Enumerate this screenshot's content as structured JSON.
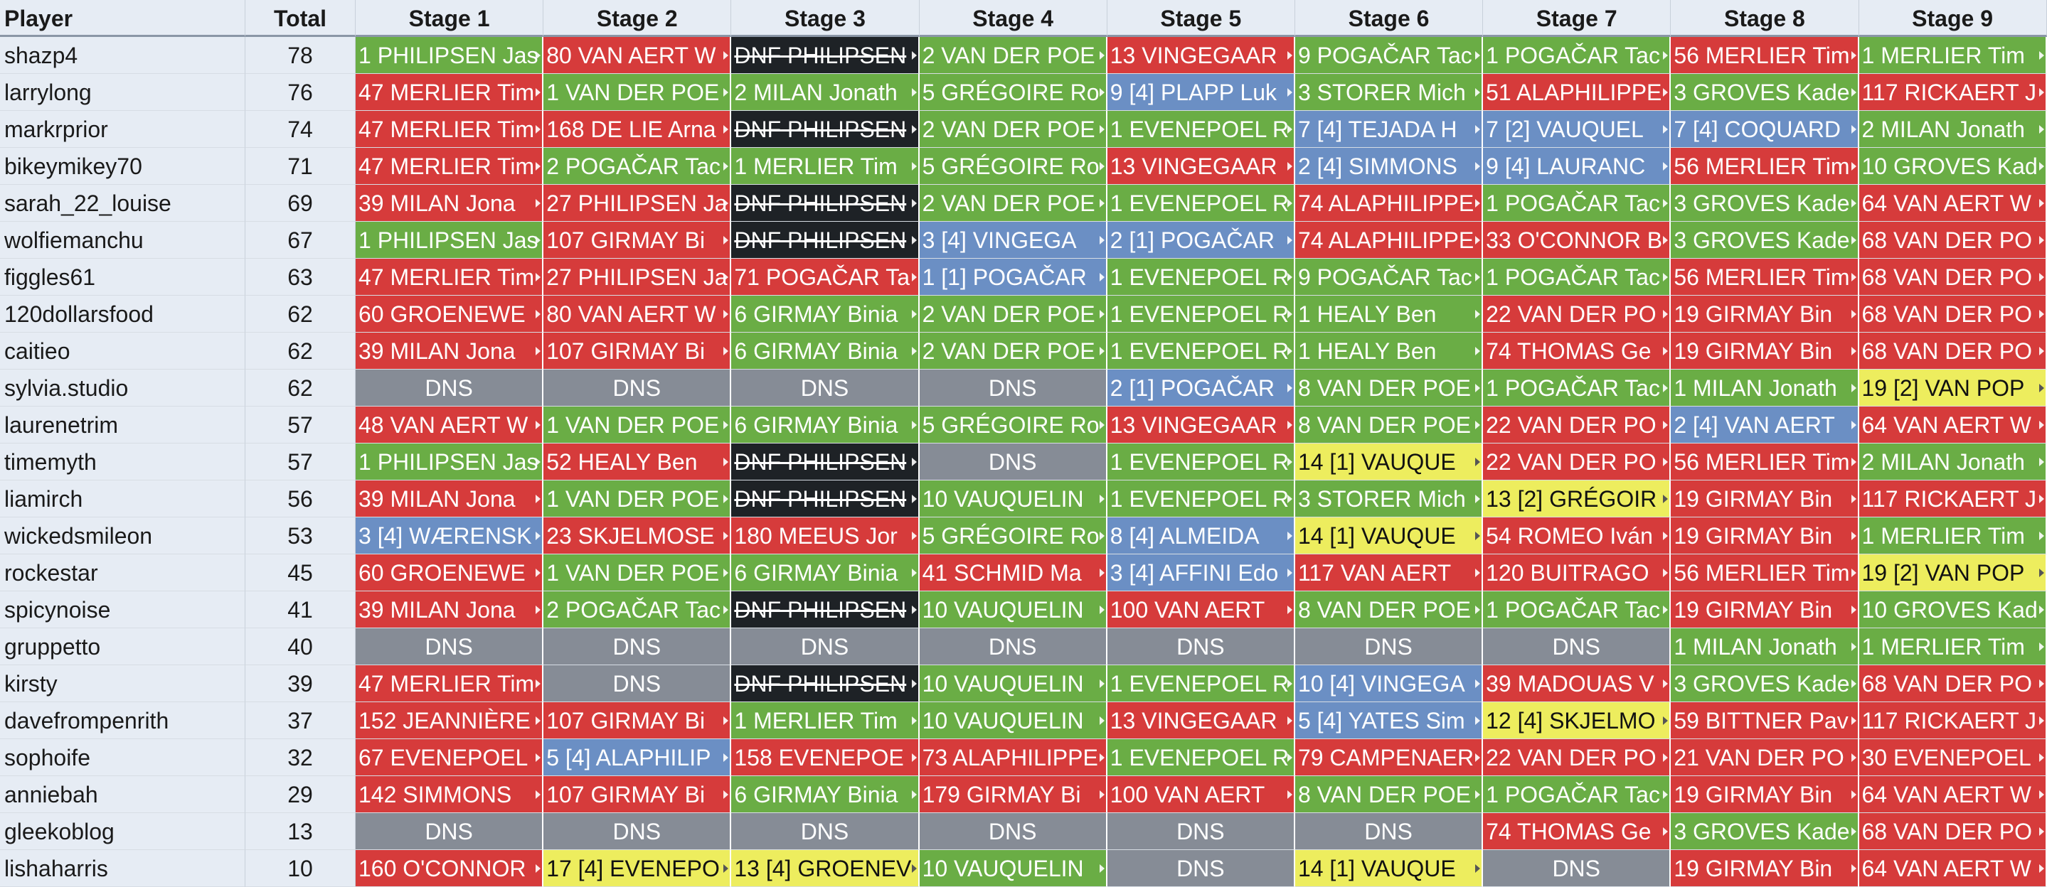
{
  "headers": [
    "Player",
    "Total",
    "Stage 1",
    "Stage 2",
    "Stage 3",
    "Stage 4",
    "Stage 5",
    "Stage 6",
    "Stage 7",
    "Stage 8",
    "Stage 9"
  ],
  "status_colors": {
    "green": "#6aad45",
    "red": "#d63b3b",
    "blue": "#6b8fc4",
    "yellow": "#eded5e",
    "black": "#1e2226",
    "dns": "#868c96"
  },
  "rows": [
    {
      "player": "shazp4",
      "total": "78",
      "stages": [
        {
          "t": "1 PHILIPSEN Jas",
          "s": "green"
        },
        {
          "t": "80 VAN AERT W",
          "s": "red"
        },
        {
          "t": "DNF PHILIPSEN",
          "s": "black"
        },
        {
          "t": "2 VAN DER POE",
          "s": "green"
        },
        {
          "t": "13 VINGEGAAR",
          "s": "red"
        },
        {
          "t": "9 POGAČAR Tac",
          "s": "green"
        },
        {
          "t": "1 POGAČAR Tac",
          "s": "green"
        },
        {
          "t": "56 MERLIER Tim",
          "s": "red"
        },
        {
          "t": "1 MERLIER Tim",
          "s": "green"
        }
      ]
    },
    {
      "player": "larrylong",
      "total": "76",
      "stages": [
        {
          "t": "47 MERLIER Tim",
          "s": "red"
        },
        {
          "t": "1 VAN DER POE",
          "s": "green"
        },
        {
          "t": "2 MILAN Jonath",
          "s": "green"
        },
        {
          "t": "5 GRÉGOIRE Ro",
          "s": "green"
        },
        {
          "t": "9 [4] PLAPP Luk",
          "s": "blue"
        },
        {
          "t": "3 STORER Mich",
          "s": "green"
        },
        {
          "t": "51 ALAPHILIPPE",
          "s": "red"
        },
        {
          "t": "3 GROVES Kade",
          "s": "green"
        },
        {
          "t": "117 RICKAERT J",
          "s": "red"
        }
      ]
    },
    {
      "player": "markrprior",
      "total": "74",
      "stages": [
        {
          "t": "47 MERLIER Tim",
          "s": "red"
        },
        {
          "t": "168 DE LIE Arna",
          "s": "red"
        },
        {
          "t": "DNF PHILIPSEN",
          "s": "black"
        },
        {
          "t": "2 VAN DER POE",
          "s": "green"
        },
        {
          "t": "1 EVENEPOEL R",
          "s": "green"
        },
        {
          "t": "7 [4] TEJADA H",
          "s": "blue"
        },
        {
          "t": "7 [2] VAUQUEL",
          "s": "blue"
        },
        {
          "t": "7 [4] COQUARD",
          "s": "blue"
        },
        {
          "t": "2 MILAN Jonath",
          "s": "green"
        }
      ]
    },
    {
      "player": "bikeymikey70",
      "total": "71",
      "stages": [
        {
          "t": "47 MERLIER Tim",
          "s": "red"
        },
        {
          "t": "2 POGAČAR Tac",
          "s": "green"
        },
        {
          "t": "1 MERLIER Tim",
          "s": "green"
        },
        {
          "t": "5 GRÉGOIRE Ro",
          "s": "green"
        },
        {
          "t": "13 VINGEGAAR",
          "s": "red"
        },
        {
          "t": "2 [4] SIMMONS",
          "s": "blue"
        },
        {
          "t": "9 [4] LAURANC",
          "s": "blue"
        },
        {
          "t": "56 MERLIER Tim",
          "s": "red"
        },
        {
          "t": "10 GROVES Kad",
          "s": "green"
        }
      ]
    },
    {
      "player": "sarah_22_louise",
      "total": "69",
      "stages": [
        {
          "t": "39 MILAN Jona",
          "s": "red"
        },
        {
          "t": "27 PHILIPSEN Ja",
          "s": "red"
        },
        {
          "t": "DNF PHILIPSEN",
          "s": "black"
        },
        {
          "t": "2 VAN DER POE",
          "s": "green"
        },
        {
          "t": "1 EVENEPOEL R",
          "s": "green"
        },
        {
          "t": "74 ALAPHILIPPE",
          "s": "red"
        },
        {
          "t": "1 POGAČAR Tac",
          "s": "green"
        },
        {
          "t": "3 GROVES Kade",
          "s": "green"
        },
        {
          "t": "64 VAN AERT W",
          "s": "red"
        }
      ]
    },
    {
      "player": "wolfiemanchu",
      "total": "67",
      "stages": [
        {
          "t": "1 PHILIPSEN Jas",
          "s": "green"
        },
        {
          "t": "107 GIRMAY Bi",
          "s": "red"
        },
        {
          "t": "DNF PHILIPSEN",
          "s": "black"
        },
        {
          "t": "3 [4] VINGEGA",
          "s": "blue"
        },
        {
          "t": "2 [1] POGAČAR",
          "s": "blue"
        },
        {
          "t": "74 ALAPHILIPPE",
          "s": "red"
        },
        {
          "t": "33 O'CONNOR B",
          "s": "red"
        },
        {
          "t": "3 GROVES Kade",
          "s": "green"
        },
        {
          "t": "68 VAN DER PO",
          "s": "red"
        }
      ]
    },
    {
      "player": "figgles61",
      "total": "63",
      "stages": [
        {
          "t": "47 MERLIER Tim",
          "s": "red"
        },
        {
          "t": "27 PHILIPSEN Ja",
          "s": "red"
        },
        {
          "t": "71 POGAČAR Ta",
          "s": "red"
        },
        {
          "t": "1 [1] POGAČAR",
          "s": "blue"
        },
        {
          "t": "1 EVENEPOEL R",
          "s": "green"
        },
        {
          "t": "9 POGAČAR Tac",
          "s": "green"
        },
        {
          "t": "1 POGAČAR Tac",
          "s": "green"
        },
        {
          "t": "56 MERLIER Tim",
          "s": "red"
        },
        {
          "t": "68 VAN DER PO",
          "s": "red"
        }
      ]
    },
    {
      "player": "120dollarsfood",
      "total": "62",
      "stages": [
        {
          "t": "60 GROENEWE",
          "s": "red"
        },
        {
          "t": "80 VAN AERT W",
          "s": "red"
        },
        {
          "t": "6 GIRMAY Binia",
          "s": "green"
        },
        {
          "t": "2 VAN DER POE",
          "s": "green"
        },
        {
          "t": "1 EVENEPOEL R",
          "s": "green"
        },
        {
          "t": "1 HEALY Ben",
          "s": "green"
        },
        {
          "t": "22 VAN DER PO",
          "s": "red"
        },
        {
          "t": "19 GIRMAY Bin",
          "s": "red"
        },
        {
          "t": "68 VAN DER PO",
          "s": "red"
        }
      ]
    },
    {
      "player": "caitieo",
      "total": "62",
      "stages": [
        {
          "t": "39 MILAN Jona",
          "s": "red"
        },
        {
          "t": "107 GIRMAY Bi",
          "s": "red"
        },
        {
          "t": "6 GIRMAY Binia",
          "s": "green"
        },
        {
          "t": "2 VAN DER POE",
          "s": "green"
        },
        {
          "t": "1 EVENEPOEL R",
          "s": "green"
        },
        {
          "t": "1 HEALY Ben",
          "s": "green"
        },
        {
          "t": "74 THOMAS Ge",
          "s": "red"
        },
        {
          "t": "19 GIRMAY Bin",
          "s": "red"
        },
        {
          "t": "68 VAN DER PO",
          "s": "red"
        }
      ]
    },
    {
      "player": "sylvia.studio",
      "total": "62",
      "stages": [
        {
          "t": "DNS",
          "s": "dns"
        },
        {
          "t": "DNS",
          "s": "dns"
        },
        {
          "t": "DNS",
          "s": "dns"
        },
        {
          "t": "DNS",
          "s": "dns"
        },
        {
          "t": "2 [1] POGAČAR",
          "s": "blue"
        },
        {
          "t": "8 VAN DER POE",
          "s": "green"
        },
        {
          "t": "1 POGAČAR Tac",
          "s": "green"
        },
        {
          "t": "1 MILAN Jonath",
          "s": "green"
        },
        {
          "t": "19 [2] VAN POP",
          "s": "yellow"
        }
      ]
    },
    {
      "player": "laurenetrim",
      "total": "57",
      "stages": [
        {
          "t": "48 VAN AERT W",
          "s": "red"
        },
        {
          "t": "1 VAN DER POE",
          "s": "green"
        },
        {
          "t": "6 GIRMAY Binia",
          "s": "green"
        },
        {
          "t": "5 GRÉGOIRE Ro",
          "s": "green"
        },
        {
          "t": "13 VINGEGAAR",
          "s": "red"
        },
        {
          "t": "8 VAN DER POE",
          "s": "green"
        },
        {
          "t": "22 VAN DER PO",
          "s": "red"
        },
        {
          "t": "2 [4] VAN AERT",
          "s": "blue"
        },
        {
          "t": "64 VAN AERT W",
          "s": "red"
        }
      ]
    },
    {
      "player": "timemyth",
      "total": "57",
      "stages": [
        {
          "t": "1 PHILIPSEN Jas",
          "s": "green"
        },
        {
          "t": "52 HEALY Ben",
          "s": "red"
        },
        {
          "t": "DNF PHILIPSEN",
          "s": "black"
        },
        {
          "t": "DNS",
          "s": "dns"
        },
        {
          "t": "1 EVENEPOEL R",
          "s": "green"
        },
        {
          "t": "14 [1] VAUQUE",
          "s": "yellow"
        },
        {
          "t": "22 VAN DER PO",
          "s": "red"
        },
        {
          "t": "56 MERLIER Tim",
          "s": "red"
        },
        {
          "t": "2 MILAN Jonath",
          "s": "green"
        }
      ]
    },
    {
      "player": "liamirch",
      "total": "56",
      "stages": [
        {
          "t": "39 MILAN Jona",
          "s": "red"
        },
        {
          "t": "1 VAN DER POE",
          "s": "green"
        },
        {
          "t": "DNF PHILIPSEN",
          "s": "black"
        },
        {
          "t": "10 VAUQUELIN",
          "s": "green"
        },
        {
          "t": "1 EVENEPOEL R",
          "s": "green"
        },
        {
          "t": "3 STORER Mich",
          "s": "green"
        },
        {
          "t": "13 [2] GRÉGOIR",
          "s": "yellow"
        },
        {
          "t": "19 GIRMAY Bin",
          "s": "red"
        },
        {
          "t": "117 RICKAERT J",
          "s": "red"
        }
      ]
    },
    {
      "player": "wickedsmileon",
      "total": "53",
      "stages": [
        {
          "t": "3 [4] WÆRENSK",
          "s": "blue"
        },
        {
          "t": "23 SKJELMOSE",
          "s": "red"
        },
        {
          "t": "180 MEEUS Jor",
          "s": "red"
        },
        {
          "t": "5 GRÉGOIRE Ro",
          "s": "green"
        },
        {
          "t": "8 [4] ALMEIDA",
          "s": "blue"
        },
        {
          "t": "14 [1] VAUQUE",
          "s": "yellow"
        },
        {
          "t": "54 ROMEO Iván",
          "s": "red"
        },
        {
          "t": "19 GIRMAY Bin",
          "s": "red"
        },
        {
          "t": "1 MERLIER Tim",
          "s": "green"
        }
      ]
    },
    {
      "player": "rockestar",
      "total": "45",
      "stages": [
        {
          "t": "60 GROENEWE",
          "s": "red"
        },
        {
          "t": "1 VAN DER POE",
          "s": "green"
        },
        {
          "t": "6 GIRMAY Binia",
          "s": "green"
        },
        {
          "t": "41 SCHMID Ma",
          "s": "red"
        },
        {
          "t": "3 [4] AFFINI Edo",
          "s": "blue"
        },
        {
          "t": "117 VAN AERT",
          "s": "red"
        },
        {
          "t": "120 BUITRAGO",
          "s": "red"
        },
        {
          "t": "56 MERLIER Tim",
          "s": "red"
        },
        {
          "t": "19 [2] VAN POP",
          "s": "yellow"
        }
      ]
    },
    {
      "player": "spicynoise",
      "total": "41",
      "stages": [
        {
          "t": "39 MILAN Jona",
          "s": "red"
        },
        {
          "t": "2 POGAČAR Tac",
          "s": "green"
        },
        {
          "t": "DNF PHILIPSEN",
          "s": "black"
        },
        {
          "t": "10 VAUQUELIN",
          "s": "green"
        },
        {
          "t": "100 VAN AERT",
          "s": "red"
        },
        {
          "t": "8 VAN DER POE",
          "s": "green"
        },
        {
          "t": "1 POGAČAR Tac",
          "s": "green"
        },
        {
          "t": "19 GIRMAY Bin",
          "s": "red"
        },
        {
          "t": "10 GROVES Kad",
          "s": "green"
        }
      ]
    },
    {
      "player": "gruppetto",
      "total": "40",
      "stages": [
        {
          "t": "DNS",
          "s": "dns"
        },
        {
          "t": "DNS",
          "s": "dns"
        },
        {
          "t": "DNS",
          "s": "dns"
        },
        {
          "t": "DNS",
          "s": "dns"
        },
        {
          "t": "DNS",
          "s": "dns"
        },
        {
          "t": "DNS",
          "s": "dns"
        },
        {
          "t": "DNS",
          "s": "dns"
        },
        {
          "t": "1 MILAN Jonath",
          "s": "green"
        },
        {
          "t": "1 MERLIER Tim",
          "s": "green"
        }
      ]
    },
    {
      "player": "kirsty",
      "total": "39",
      "stages": [
        {
          "t": "47 MERLIER Tim",
          "s": "red"
        },
        {
          "t": "DNS",
          "s": "dns"
        },
        {
          "t": "DNF PHILIPSEN",
          "s": "black"
        },
        {
          "t": "10 VAUQUELIN",
          "s": "green"
        },
        {
          "t": "1 EVENEPOEL R",
          "s": "green"
        },
        {
          "t": "10 [4] VINGEGA",
          "s": "blue"
        },
        {
          "t": "39 MADOUAS V",
          "s": "red"
        },
        {
          "t": "3 GROVES Kade",
          "s": "green"
        },
        {
          "t": "68 VAN DER PO",
          "s": "red"
        }
      ]
    },
    {
      "player": "davefrompenrith",
      "total": "37",
      "stages": [
        {
          "t": "152 JEANNIÈRE",
          "s": "red"
        },
        {
          "t": "107 GIRMAY Bi",
          "s": "red"
        },
        {
          "t": "1 MERLIER Tim",
          "s": "green"
        },
        {
          "t": "10 VAUQUELIN",
          "s": "green"
        },
        {
          "t": "13 VINGEGAAR",
          "s": "red"
        },
        {
          "t": "5 [4] YATES Sim",
          "s": "blue"
        },
        {
          "t": "12 [4] SKJELMO",
          "s": "yellow"
        },
        {
          "t": "59 BITTNER Pav",
          "s": "red"
        },
        {
          "t": "117 RICKAERT J",
          "s": "red"
        }
      ]
    },
    {
      "player": "sophoife",
      "total": "32",
      "stages": [
        {
          "t": "67 EVENEPOEL",
          "s": "red"
        },
        {
          "t": "5 [4] ALAPHILIP",
          "s": "blue"
        },
        {
          "t": "158 EVENEPOE",
          "s": "red"
        },
        {
          "t": "73 ALAPHILIPPE",
          "s": "red"
        },
        {
          "t": "1 EVENEPOEL R",
          "s": "green"
        },
        {
          "t": "79 CAMPENAER",
          "s": "red"
        },
        {
          "t": "22 VAN DER PO",
          "s": "red"
        },
        {
          "t": "21 VAN DER PO",
          "s": "red"
        },
        {
          "t": "30 EVENEPOEL",
          "s": "red"
        }
      ]
    },
    {
      "player": "anniebah",
      "total": "29",
      "stages": [
        {
          "t": "142 SIMMONS",
          "s": "red"
        },
        {
          "t": "107 GIRMAY Bi",
          "s": "red"
        },
        {
          "t": "6 GIRMAY Binia",
          "s": "green"
        },
        {
          "t": "179 GIRMAY Bi",
          "s": "red"
        },
        {
          "t": "100 VAN AERT",
          "s": "red"
        },
        {
          "t": "8 VAN DER POE",
          "s": "green"
        },
        {
          "t": "1 POGAČAR Tac",
          "s": "green"
        },
        {
          "t": "19 GIRMAY Bin",
          "s": "red"
        },
        {
          "t": "64 VAN AERT W",
          "s": "red"
        }
      ]
    },
    {
      "player": "gleekoblog",
      "total": "13",
      "stages": [
        {
          "t": "DNS",
          "s": "dns"
        },
        {
          "t": "DNS",
          "s": "dns"
        },
        {
          "t": "DNS",
          "s": "dns"
        },
        {
          "t": "DNS",
          "s": "dns"
        },
        {
          "t": "DNS",
          "s": "dns"
        },
        {
          "t": "DNS",
          "s": "dns"
        },
        {
          "t": "74 THOMAS Ge",
          "s": "red"
        },
        {
          "t": "3 GROVES Kade",
          "s": "green"
        },
        {
          "t": "68 VAN DER PO",
          "s": "red"
        }
      ]
    },
    {
      "player": "lishaharris",
      "total": "10",
      "stages": [
        {
          "t": "160 O'CONNOR",
          "s": "red"
        },
        {
          "t": "17 [4] EVENEPO",
          "s": "yellow"
        },
        {
          "t": "13 [4] GROENEV",
          "s": "yellow"
        },
        {
          "t": "10 VAUQUELIN",
          "s": "green"
        },
        {
          "t": "DNS",
          "s": "dns"
        },
        {
          "t": "14 [1] VAUQUE",
          "s": "yellow"
        },
        {
          "t": "DNS",
          "s": "dns"
        },
        {
          "t": "19 GIRMAY Bin",
          "s": "red"
        },
        {
          "t": "64 VAN AERT W",
          "s": "red"
        }
      ]
    }
  ]
}
